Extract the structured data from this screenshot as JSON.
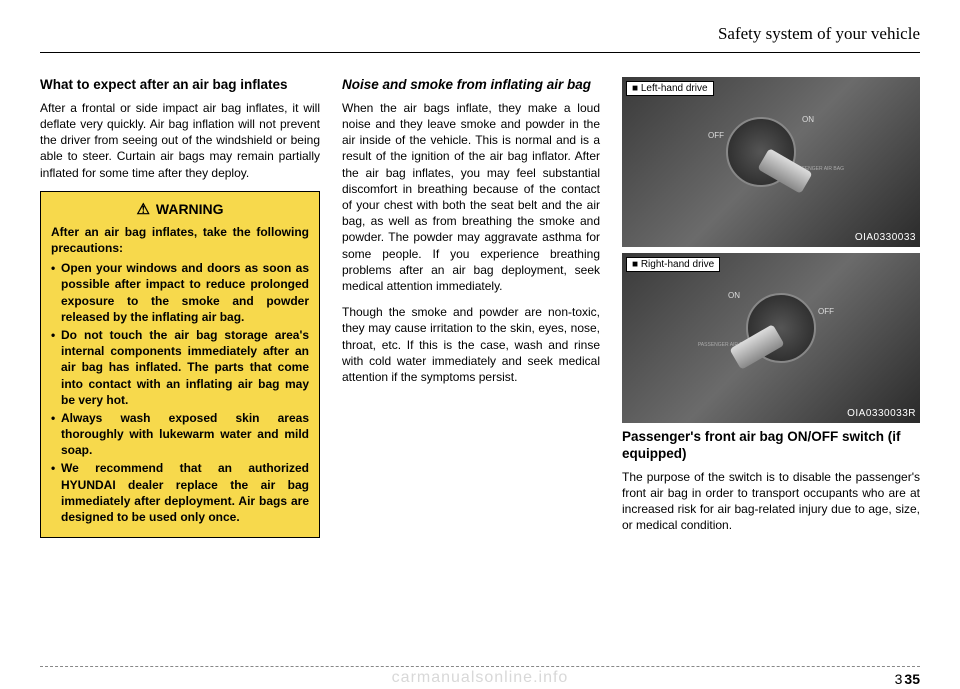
{
  "header": "Safety system of your vehicle",
  "col1": {
    "heading": "What to expect after an air bag inflates",
    "para": "After a frontal or side impact air bag inflates, it will deflate very quickly. Air bag inflation will not prevent the driver from seeing out of the windshield or being able to steer. Curtain air bags may remain partially inflated for some time after they deploy.",
    "warning": {
      "title": "WARNING",
      "lead": "After an air bag inflates, take the following precautions:",
      "items": [
        "Open your windows and doors as soon as possible after impact to reduce prolonged exposure to the smoke and powder released by the inflating air bag.",
        "Do not touch the air bag storage area's internal components immediately after an air bag has inflated. The parts that come into contact with an inflating air bag may be very hot.",
        "Always wash exposed skin areas thoroughly with lukewarm water and mild soap.",
        "We recommend that an authorized HYUNDAI dealer replace the air bag immediately after deployment. Air bags are designed to be used only once."
      ]
    }
  },
  "col2": {
    "heading": "Noise and smoke from inflating air bag",
    "para1": "When the air bags inflate, they make a loud noise and they leave smoke and powder in the air inside of the vehicle. This is normal and is a result of the ignition of the air bag inflator. After the air bag inflates, you may feel substantial discomfort in breathing because of the contact of your chest with both the seat belt and the air bag, as well as from breathing the smoke and powder. The powder may aggravate asthma for some people. If you experience breathing problems after an air bag deployment, seek medical attention immediately.",
    "para2": "Though the smoke and powder are non-toxic, they may cause irritation to the skin, eyes, nose, throat, etc. If this is the case, wash and rinse with cold water immediately and seek medical attention if the symptoms persist."
  },
  "col3": {
    "img1": {
      "label": "■ Left-hand drive",
      "code": "OIA0330033",
      "on": "ON",
      "off": "OFF",
      "pab": "PASSENGER\nAIR BAG"
    },
    "img2": {
      "label": "■ Right-hand drive",
      "code": "OIA0330033R",
      "on": "ON",
      "off": "OFF",
      "pab": "PASSENGER\nAIR BAG"
    },
    "heading": "Passenger's front air bag ON/OFF switch  (if equipped)",
    "para": "The purpose of the switch is to disable the passenger's front air bag in order to transport occupants who are at increased risk for air bag-related injury due to age, size, or medical condition."
  },
  "pagenum": {
    "section": "3",
    "page": "35"
  },
  "watermark": "carmanualsonline.info"
}
